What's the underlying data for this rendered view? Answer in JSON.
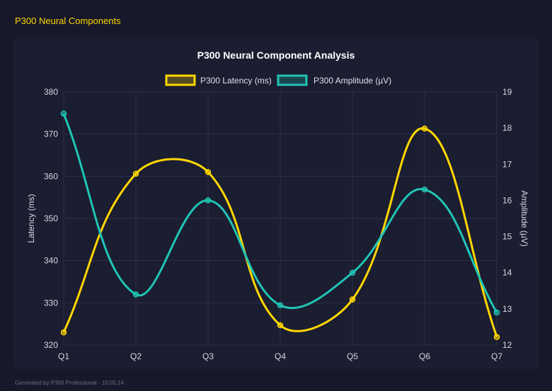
{
  "header": {
    "title": "P300 Neural Components"
  },
  "footer": {
    "text": "Generated by P300 Professional - 10:05:14"
  },
  "chart_data": {
    "type": "line",
    "title": "P300 Neural Component Analysis",
    "categories": [
      "Q1",
      "Q2",
      "Q3",
      "Q4",
      "Q5",
      "Q6",
      "Q7"
    ],
    "series": [
      {
        "name": "P300 Latency (ms)",
        "axis": "left",
        "color": "#FFD700",
        "values": [
          323.0,
          360.6,
          361.0,
          324.7,
          330.8,
          371.3,
          321.9
        ]
      },
      {
        "name": "P300 Amplitude (µV)",
        "axis": "right",
        "color": "#20C5B5",
        "values": [
          18.4,
          13.4,
          16.0,
          13.1,
          14.0,
          16.3,
          12.9
        ]
      }
    ],
    "y_left": {
      "label": "Latency (ms)",
      "range": [
        320,
        380
      ],
      "ticks": [
        320,
        330,
        340,
        350,
        360,
        370,
        380
      ]
    },
    "y_right": {
      "label": "Amplitude (µV)",
      "range": [
        12,
        19
      ],
      "ticks": [
        12,
        13,
        14,
        15,
        16,
        17,
        18,
        19
      ]
    },
    "grid": true,
    "legend_position": "top",
    "smoothed": true
  }
}
